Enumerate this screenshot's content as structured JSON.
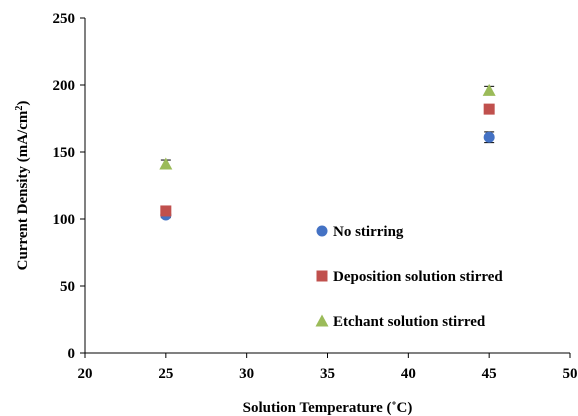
{
  "chart_data": {
    "type": "scatter",
    "title": "",
    "xlabel": "Solution Temperature (˚C)",
    "ylabel_main": "Current Density (mA/cm",
    "ylabel_sup": "2",
    "ylabel_end": ")",
    "xlim": [
      20,
      50
    ],
    "ylim": [
      0,
      250
    ],
    "xticks": [
      20,
      25,
      30,
      35,
      40,
      45,
      50
    ],
    "yticks": [
      0,
      50,
      100,
      150,
      200,
      250
    ],
    "grid": false,
    "legend_position": "bottom-right",
    "series": [
      {
        "name": "No stirring",
        "marker": "circle",
        "color": "#4472C4",
        "x": [
          25,
          45
        ],
        "y": [
          103,
          161
        ],
        "error": [
          2,
          4
        ]
      },
      {
        "name": "Deposition solution stirred",
        "marker": "square",
        "color": "#C0504D",
        "x": [
          25,
          45
        ],
        "y": [
          106,
          182
        ],
        "error": [
          2,
          2
        ]
      },
      {
        "name": "Etchant solution stirred",
        "marker": "triangle",
        "color": "#9BBB59",
        "x": [
          25,
          45
        ],
        "y": [
          141,
          196
        ],
        "error": [
          3,
          3
        ]
      }
    ]
  }
}
